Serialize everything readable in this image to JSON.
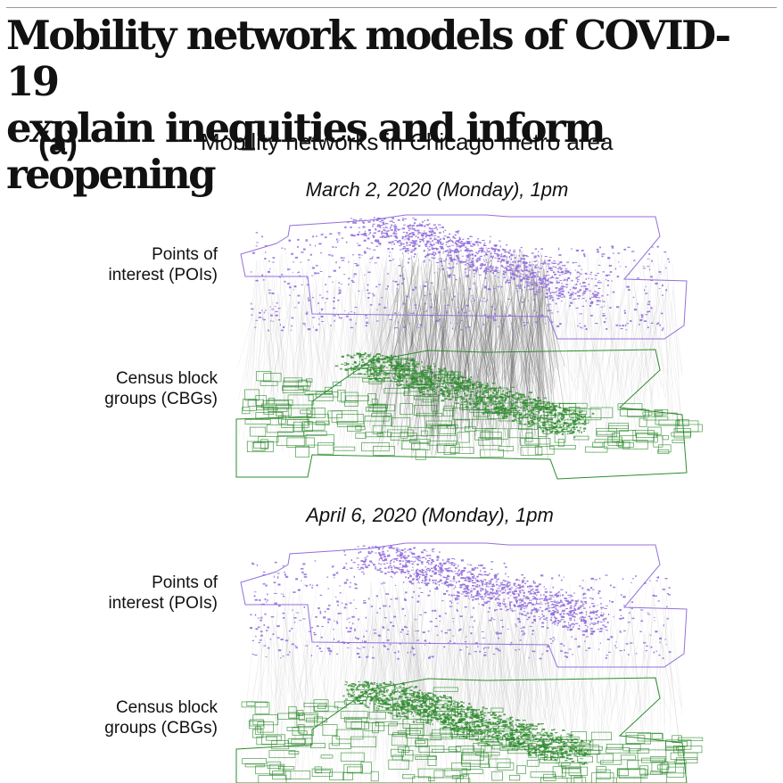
{
  "headline": {
    "line1": "Mobility network models of COVID-19",
    "line2": "explain inequities and inform reopening"
  },
  "figure": {
    "panel_label": "(a)",
    "title": "Mobility networks in Chicago metro area",
    "snapshots": [
      {
        "subtitle": "March 2, 2020 (Monday), 1pm",
        "poi_label_line1": "Points of",
        "poi_label_line2": "interest (POIs)",
        "cbg_label_line1": "Census block",
        "cbg_label_line2": "groups (CBGs)"
      },
      {
        "subtitle": "April 6, 2020 (Monday), 1pm",
        "poi_label_line1": "Points of",
        "poi_label_line2": "interest (POIs)",
        "cbg_label_line1": "Census block",
        "cbg_label_line2": "groups (CBGs)"
      }
    ],
    "colors": {
      "poi": "#9370db",
      "cbg": "#2e8b2e",
      "edge_dense": "#555555",
      "edge_sparse": "#bbbbbb"
    }
  }
}
